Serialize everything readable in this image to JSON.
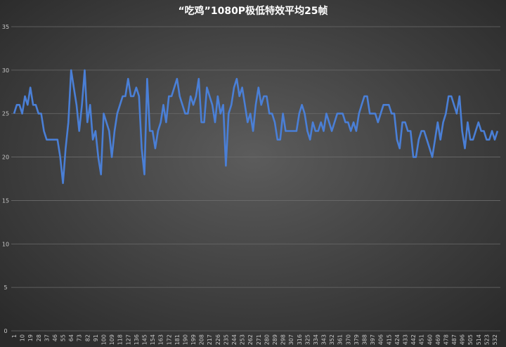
{
  "chart_data": {
    "type": "line",
    "title": "“吃鸡”1080P极低特效平均25帧",
    "xlabel": "",
    "ylabel": "",
    "ylim": [
      0,
      35
    ],
    "yticks": [
      0,
      5,
      10,
      15,
      20,
      25,
      30,
      35
    ],
    "xlim": [
      1,
      536
    ],
    "xticks": [
      1,
      10,
      19,
      28,
      37,
      46,
      55,
      64,
      73,
      82,
      91,
      100,
      109,
      118,
      127,
      136,
      145,
      154,
      163,
      172,
      181,
      190,
      199,
      208,
      217,
      226,
      235,
      244,
      253,
      262,
      271,
      280,
      289,
      298,
      307,
      316,
      325,
      334,
      343,
      352,
      361,
      370,
      379,
      388,
      397,
      406,
      415,
      424,
      433,
      442,
      451,
      460,
      469,
      478,
      487,
      496,
      505,
      514,
      523,
      532
    ],
    "grid": true,
    "legend": "none",
    "colors": {
      "line": "#4a7fd6",
      "grid": "#6b6b6b",
      "text": "#c8c8c8",
      "title": "#ffffff"
    },
    "series": [
      {
        "x": [
          1,
          4,
          7,
          10,
          13,
          16,
          19,
          22,
          25,
          28,
          31,
          34,
          37,
          40,
          43,
          46,
          49,
          52,
          55,
          58,
          61,
          64,
          67,
          70,
          73,
          76,
          79,
          82,
          85,
          88,
          91,
          94,
          97,
          100,
          103,
          106,
          109,
          112,
          115,
          118,
          121,
          124,
          127,
          130,
          133,
          136,
          139,
          142,
          145,
          148,
          151,
          154,
          157,
          160,
          163,
          166,
          169,
          172,
          175,
          178,
          181,
          184,
          187,
          190,
          193,
          196,
          199,
          202,
          205,
          208,
          211,
          214,
          217,
          220,
          223,
          226,
          229,
          232,
          235,
          238,
          241,
          244,
          247,
          250,
          253,
          256,
          259,
          262,
          265,
          268,
          271,
          274,
          277,
          280,
          283,
          286,
          289,
          292,
          295,
          298,
          301,
          304,
          307,
          310,
          313,
          316,
          319,
          322,
          325,
          328,
          331,
          334,
          337,
          340,
          343,
          346,
          349,
          352,
          355,
          358,
          361,
          364,
          367,
          370,
          373,
          376,
          379,
          382,
          385,
          388,
          391,
          394,
          397,
          400,
          403,
          406,
          409,
          412,
          415,
          418,
          421,
          424,
          427,
          430,
          433,
          436,
          439,
          442,
          445,
          448,
          451,
          454,
          457,
          460,
          463,
          466,
          469,
          472,
          475,
          478,
          481,
          484,
          487,
          490,
          493,
          496,
          499,
          502,
          505,
          508,
          511,
          514,
          517,
          520,
          523,
          526,
          529,
          532,
          535
        ],
        "y": [
          25,
          26,
          26,
          25,
          27,
          26,
          28,
          26,
          26,
          25,
          25,
          23,
          22,
          22,
          22,
          22,
          22,
          20,
          17,
          21,
          24,
          30,
          28,
          26,
          23,
          26,
          30,
          24,
          26,
          22,
          23,
          20,
          18,
          25,
          24,
          23,
          20,
          23,
          25,
          26,
          27,
          27,
          29,
          27,
          27,
          28,
          27,
          21,
          18,
          29,
          23,
          23,
          21,
          23,
          24,
          26,
          24,
          27,
          27,
          28,
          29,
          27,
          26,
          25,
          25,
          27,
          26,
          27,
          29,
          24,
          24,
          28,
          27,
          26,
          24,
          27,
          25,
          26,
          19,
          25,
          26,
          28,
          29,
          27,
          28,
          26,
          24,
          25,
          23,
          26,
          28,
          26,
          27,
          27,
          25,
          25,
          24,
          22,
          22,
          25,
          23,
          23,
          23,
          23,
          23,
          25,
          26,
          25,
          23,
          22,
          24,
          23,
          23,
          24,
          23,
          25,
          24,
          23,
          24,
          25,
          25,
          25,
          24,
          24,
          23,
          24,
          23,
          25,
          26,
          27,
          27,
          25,
          25,
          25,
          24,
          25,
          26,
          26,
          26,
          25,
          25,
          22,
          21,
          24,
          24,
          23,
          23,
          20,
          20,
          22,
          23,
          23,
          22,
          21,
          20,
          22,
          24,
          22,
          24,
          25,
          27,
          27,
          26,
          25,
          27,
          23,
          21,
          24,
          22,
          22,
          23,
          24,
          23,
          23,
          22,
          22,
          23,
          22,
          23
        ]
      }
    ]
  }
}
